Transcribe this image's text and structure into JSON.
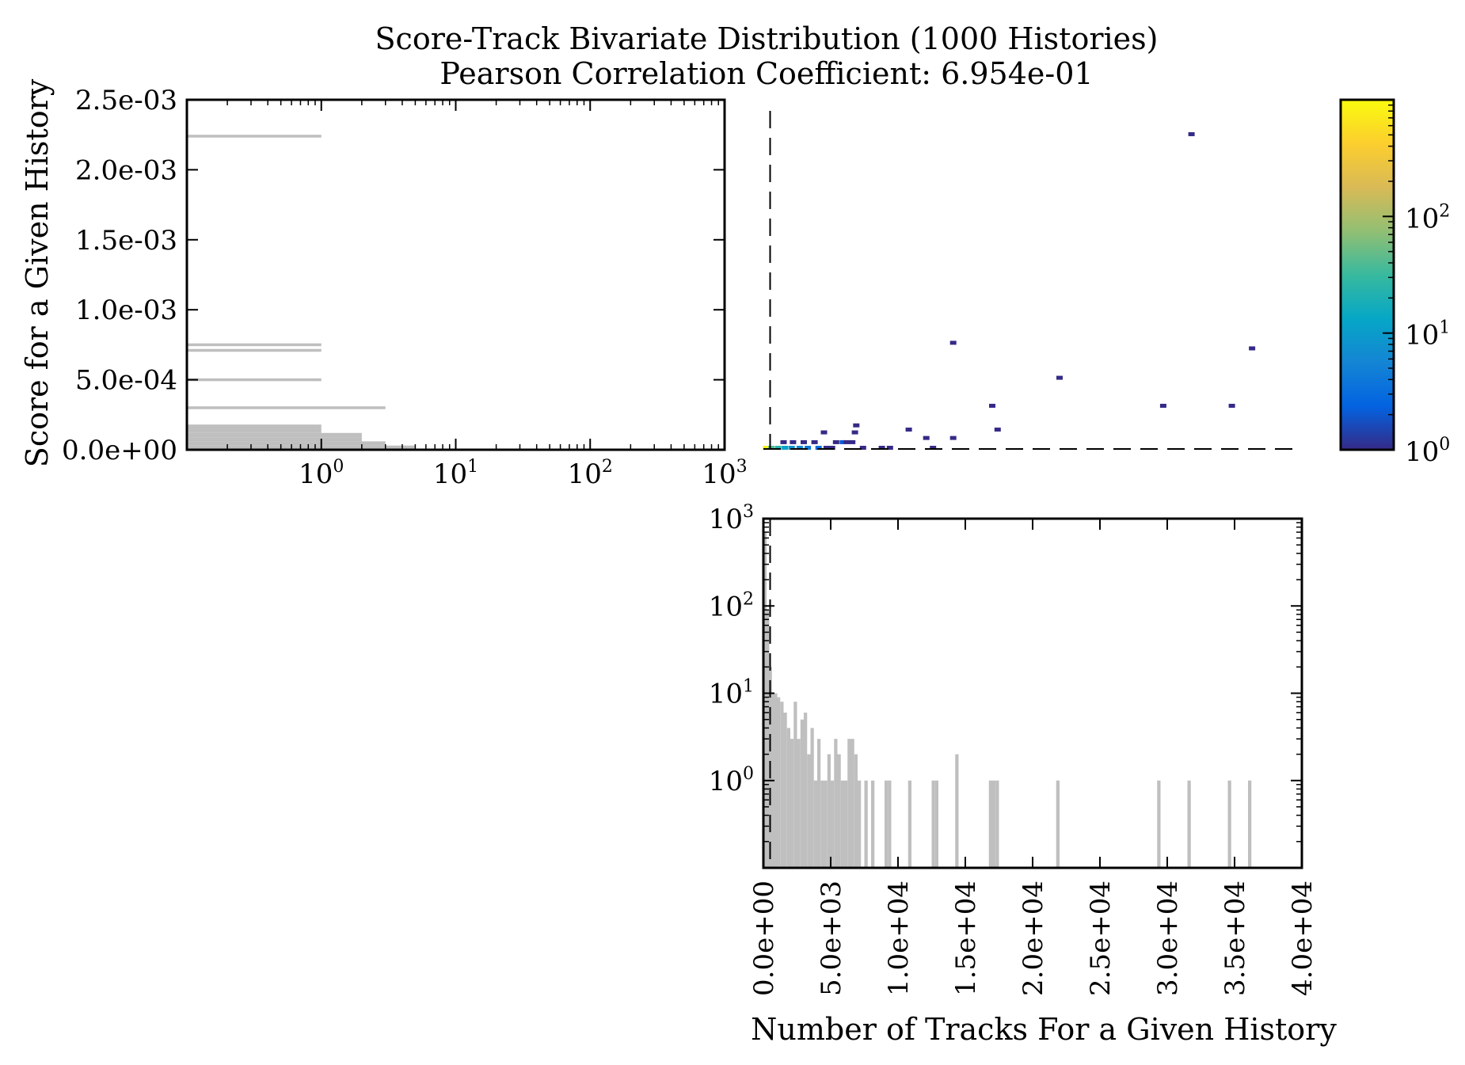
{
  "title": "Score-Track Bivariate Distribution (1000 Histories)",
  "subtitle": "Pearson Correlation Coefficient: 6.954e-01",
  "colors": {
    "histogram": "#bfbfbf",
    "colormap": [
      "#352a87",
      "#0363e1",
      "#1485d4",
      "#06a7c6",
      "#38b99e",
      "#92bf73",
      "#d9ba56",
      "#fcce2e",
      "#f9fb0e"
    ]
  },
  "chart_data": [
    {
      "name": "score-marginal",
      "type": "bar",
      "orientation": "horizontal",
      "ylabel": "Score for a Given History",
      "y_ticks": [
        "0.0e+00",
        "5.0e-04",
        "1.0e-03",
        "1.5e-03",
        "2.0e-03",
        "2.5e-03"
      ],
      "ylim": [
        0,
        0.0025
      ],
      "x_scale": "log",
      "x_ticks": [
        "10^0",
        "10^1",
        "10^2",
        "10^3"
      ],
      "xlim": [
        0.1,
        1000
      ],
      "bins": [
        {
          "y0": 0.0,
          "y1": 3e-05,
          "count": 5
        },
        {
          "y0": 3e-05,
          "y1": 6e-05,
          "count": 3
        },
        {
          "y0": 6e-05,
          "y1": 9e-05,
          "count": 2
        },
        {
          "y0": 9e-05,
          "y1": 0.00012,
          "count": 2
        },
        {
          "y0": 0.00012,
          "y1": 0.00015,
          "count": 1
        },
        {
          "y0": 0.00015,
          "y1": 0.00018,
          "count": 1
        },
        {
          "y0": 0.00029,
          "y1": 0.00031,
          "count": 3
        },
        {
          "y0": 0.00049,
          "y1": 0.00051,
          "count": 1
        },
        {
          "y0": 0.0007,
          "y1": 0.00072,
          "count": 1
        },
        {
          "y0": 0.00074,
          "y1": 0.00076,
          "count": 1
        },
        {
          "y0": 0.00223,
          "y1": 0.00225,
          "count": 1
        }
      ]
    },
    {
      "name": "bivariate-heatmap",
      "type": "heatmap",
      "xlim": [
        0,
        40000
      ],
      "ylim": [
        0,
        0.0025
      ],
      "color_scale": "log",
      "colorbar_ticks": [
        "10^0",
        "10^1",
        "10^2"
      ],
      "colorbar_range": [
        1,
        1000
      ],
      "mean_lines": {
        "x": 500,
        "y": 0.0
      },
      "cells": [
        {
          "x": 200,
          "y": 0.0,
          "count": 800
        },
        {
          "x": 600,
          "y": 0.0,
          "count": 40
        },
        {
          "x": 1100,
          "y": 0.0,
          "count": 25
        },
        {
          "x": 1600,
          "y": 0.0,
          "count": 12
        },
        {
          "x": 2100,
          "y": 0.0,
          "count": 8
        },
        {
          "x": 2700,
          "y": 0.0,
          "count": 6
        },
        {
          "x": 3300,
          "y": 0.0,
          "count": 4
        },
        {
          "x": 4100,
          "y": 0.0,
          "count": 3
        },
        {
          "x": 1500,
          "y": 4e-05,
          "count": 1
        },
        {
          "x": 2200,
          "y": 4e-05,
          "count": 1
        },
        {
          "x": 3000,
          "y": 4e-05,
          "count": 1
        },
        {
          "x": 3800,
          "y": 4e-05,
          "count": 1
        },
        {
          "x": 5400,
          "y": 4e-05,
          "count": 1
        },
        {
          "x": 5900,
          "y": 4e-05,
          "count": 2
        },
        {
          "x": 6200,
          "y": 4e-05,
          "count": 1
        },
        {
          "x": 6600,
          "y": 4e-05,
          "count": 1
        },
        {
          "x": 4700,
          "y": 0.0,
          "count": 1
        },
        {
          "x": 5100,
          "y": 0.0,
          "count": 1
        },
        {
          "x": 7400,
          "y": 0.0,
          "count": 1
        },
        {
          "x": 8800,
          "y": 0.0,
          "count": 1
        },
        {
          "x": 9400,
          "y": 0.0,
          "count": 1
        },
        {
          "x": 12600,
          "y": 0.0,
          "count": 1
        },
        {
          "x": 4500,
          "y": 0.00011,
          "count": 1
        },
        {
          "x": 6800,
          "y": 0.00011,
          "count": 1
        },
        {
          "x": 6900,
          "y": 0.00016,
          "count": 1
        },
        {
          "x": 10800,
          "y": 0.00013,
          "count": 1
        },
        {
          "x": 12100,
          "y": 7e-05,
          "count": 1
        },
        {
          "x": 14100,
          "y": 7e-05,
          "count": 1
        },
        {
          "x": 14100,
          "y": 0.00075,
          "count": 1
        },
        {
          "x": 17000,
          "y": 0.0003,
          "count": 1
        },
        {
          "x": 17400,
          "y": 0.00013,
          "count": 1
        },
        {
          "x": 22000,
          "y": 0.0005,
          "count": 1
        },
        {
          "x": 29700,
          "y": 0.0003,
          "count": 1
        },
        {
          "x": 31800,
          "y": 0.00224,
          "count": 1
        },
        {
          "x": 34800,
          "y": 0.0003,
          "count": 1
        },
        {
          "x": 36300,
          "y": 0.00071,
          "count": 1
        }
      ]
    },
    {
      "name": "track-marginal",
      "type": "bar",
      "xlabel": "Number of Tracks For a Given History",
      "x_ticks": [
        "0.0e+00",
        "5.0e+03",
        "1.0e+04",
        "1.5e+04",
        "2.0e+04",
        "2.5e+04",
        "3.0e+04",
        "3.5e+04",
        "4.0e+04"
      ],
      "xlim": [
        0,
        40000
      ],
      "y_scale": "log",
      "y_ticks": [
        "10^0",
        "10^1",
        "10^2",
        "10^3"
      ],
      "ylim": [
        0.1,
        1000
      ],
      "bins": [
        {
          "x0": 0,
          "x1": 200,
          "count": 700
        },
        {
          "x0": 200,
          "x1": 400,
          "count": 90
        },
        {
          "x0": 400,
          "x1": 600,
          "count": 20
        },
        {
          "x0": 600,
          "x1": 800,
          "count": 10
        },
        {
          "x0": 800,
          "x1": 1000,
          "count": 10
        },
        {
          "x0": 1000,
          "x1": 1250,
          "count": 9
        },
        {
          "x0": 1250,
          "x1": 1500,
          "count": 8
        },
        {
          "x0": 1500,
          "x1": 1750,
          "count": 6
        },
        {
          "x0": 1750,
          "x1": 2000,
          "count": 4
        },
        {
          "x0": 2000,
          "x1": 2250,
          "count": 3
        },
        {
          "x0": 2250,
          "x1": 2500,
          "count": 8
        },
        {
          "x0": 2500,
          "x1": 2750,
          "count": 3
        },
        {
          "x0": 2750,
          "x1": 3000,
          "count": 5
        },
        {
          "x0": 3000,
          "x1": 3250,
          "count": 6
        },
        {
          "x0": 3250,
          "x1": 3500,
          "count": 2
        },
        {
          "x0": 3500,
          "x1": 3750,
          "count": 4
        },
        {
          "x0": 3750,
          "x1": 4000,
          "count": 1
        },
        {
          "x0": 4000,
          "x1": 4250,
          "count": 3
        },
        {
          "x0": 4250,
          "x1": 4500,
          "count": 1
        },
        {
          "x0": 4500,
          "x1": 4750,
          "count": 1
        },
        {
          "x0": 4750,
          "x1": 5000,
          "count": 2
        },
        {
          "x0": 5000,
          "x1": 5250,
          "count": 1
        },
        {
          "x0": 5250,
          "x1": 5500,
          "count": 3
        },
        {
          "x0": 5500,
          "x1": 5750,
          "count": 2
        },
        {
          "x0": 5750,
          "x1": 6000,
          "count": 1
        },
        {
          "x0": 6000,
          "x1": 6250,
          "count": 1
        },
        {
          "x0": 6250,
          "x1": 6500,
          "count": 3
        },
        {
          "x0": 6500,
          "x1": 6750,
          "count": 3
        },
        {
          "x0": 6750,
          "x1": 7000,
          "count": 2
        },
        {
          "x0": 7000,
          "x1": 7250,
          "count": 1
        },
        {
          "x0": 7500,
          "x1": 7750,
          "count": 1
        },
        {
          "x0": 8000,
          "x1": 8250,
          "count": 1
        },
        {
          "x0": 9000,
          "x1": 9250,
          "count": 1
        },
        {
          "x0": 9250,
          "x1": 9500,
          "count": 1
        },
        {
          "x0": 10750,
          "x1": 11000,
          "count": 1
        },
        {
          "x0": 12500,
          "x1": 12750,
          "count": 1
        },
        {
          "x0": 12750,
          "x1": 13000,
          "count": 1
        },
        {
          "x0": 14250,
          "x1": 14500,
          "count": 2
        },
        {
          "x0": 16750,
          "x1": 17000,
          "count": 1
        },
        {
          "x0": 17000,
          "x1": 17250,
          "count": 1
        },
        {
          "x0": 17250,
          "x1": 17500,
          "count": 1
        },
        {
          "x0": 21750,
          "x1": 22000,
          "count": 1
        },
        {
          "x0": 29250,
          "x1": 29500,
          "count": 1
        },
        {
          "x0": 31500,
          "x1": 31750,
          "count": 1
        },
        {
          "x0": 34500,
          "x1": 34750,
          "count": 1
        },
        {
          "x0": 36000,
          "x1": 36250,
          "count": 1
        }
      ]
    }
  ]
}
